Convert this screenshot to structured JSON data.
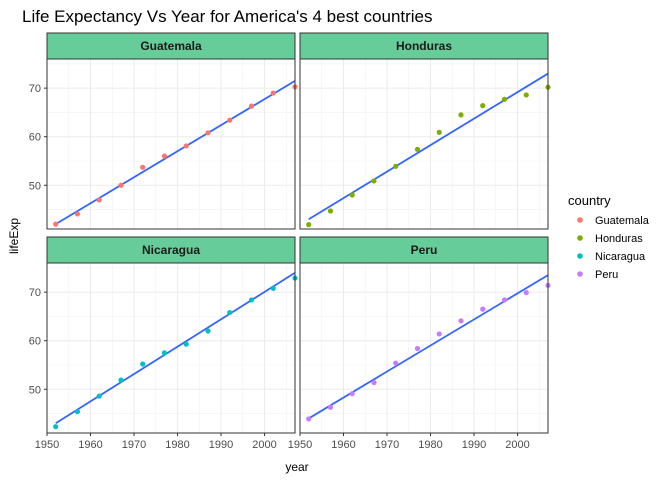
{
  "chart_data": {
    "type": "scatter",
    "title": "Life Expectancy Vs Year for America's 4 best countries",
    "xlabel": "year",
    "ylabel": "lifeExp",
    "xlim": [
      1950,
      2007
    ],
    "ylim": [
      41,
      76
    ],
    "x_ticks": [
      1950,
      1960,
      1970,
      1980,
      1990,
      2000
    ],
    "y_ticks": [
      50,
      60,
      70
    ],
    "grid": true,
    "facet_by": "country",
    "legend": {
      "title": "country",
      "placement": "right"
    },
    "colors": {
      "Guatemala": "#F8766D",
      "Honduras": "#7CAE00",
      "Nicaragua": "#00BFC4",
      "Peru": "#C77CFF",
      "trend": "#3366FF",
      "strip": "#66CC99"
    },
    "x": [
      1952,
      1957,
      1962,
      1967,
      1972,
      1977,
      1982,
      1987,
      1992,
      1997,
      2002,
      2007
    ],
    "series": [
      {
        "name": "Guatemala",
        "values": [
          42.0,
          44.1,
          47.0,
          50.0,
          53.7,
          56.0,
          58.1,
          60.8,
          63.4,
          66.3,
          68.98,
          70.26
        ],
        "trend": [
          42.0,
          71.5
        ]
      },
      {
        "name": "Honduras",
        "values": [
          41.9,
          44.7,
          48.0,
          50.9,
          53.9,
          57.4,
          60.9,
          64.5,
          66.4,
          67.7,
          68.6,
          70.2
        ],
        "trend": [
          43.0,
          73.0
        ]
      },
      {
        "name": "Nicaragua",
        "values": [
          42.3,
          45.4,
          48.6,
          51.9,
          55.2,
          57.5,
          59.3,
          62.0,
          65.8,
          68.4,
          70.8,
          72.9
        ],
        "trend": [
          43.0,
          74.0
        ]
      },
      {
        "name": "Peru",
        "values": [
          43.9,
          46.3,
          49.1,
          51.4,
          55.4,
          58.4,
          61.4,
          64.1,
          66.5,
          68.4,
          69.9,
          71.4
        ],
        "trend": [
          44.0,
          73.5
        ]
      }
    ]
  }
}
